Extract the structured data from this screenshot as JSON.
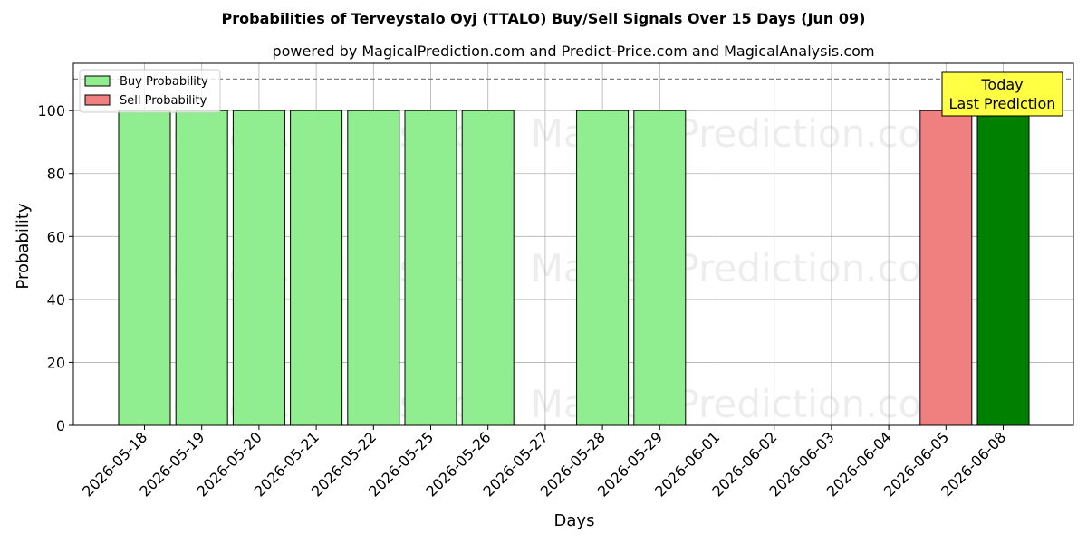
{
  "chart_data": {
    "type": "bar",
    "title": "Probabilities of Terveystalo Oyj (TTALO) Buy/Sell Signals Over 15 Days (Jun 09)",
    "subtitle": "powered by MagicalPrediction.com and Predict-Price.com and MagicalAnalysis.com",
    "xlabel": "Days",
    "ylabel": "Probability",
    "ylim": [
      0,
      115
    ],
    "yticks": [
      0,
      20,
      40,
      60,
      80,
      100
    ],
    "grid": true,
    "legend_position": "top-left",
    "reference_line": 110,
    "categories": [
      "2026-05-18",
      "2026-05-19",
      "2026-05-20",
      "2026-05-21",
      "2026-05-22",
      "2026-05-25",
      "2026-05-26",
      "2026-05-27",
      "2026-05-28",
      "2026-05-29",
      "2026-06-01",
      "2026-06-02",
      "2026-06-03",
      "2026-06-04",
      "2026-06-05",
      "2026-06-08"
    ],
    "series": [
      {
        "name": "Buy Probability",
        "color": "#90ee90",
        "values": [
          100,
          100,
          100,
          100,
          100,
          100,
          100,
          0,
          100,
          100,
          0,
          0,
          0,
          0,
          0,
          100
        ]
      },
      {
        "name": "Sell Probability",
        "color": "#f08080",
        "values": [
          0,
          0,
          0,
          0,
          0,
          0,
          0,
          0,
          0,
          0,
          0,
          0,
          0,
          0,
          100,
          0
        ]
      }
    ],
    "highlight": {
      "category": "2026-06-08",
      "color": "#008000"
    },
    "annotation": {
      "line1": "Today",
      "line2": "Last Prediction",
      "color": "#ffff44"
    },
    "watermarks": [
      "MagicalAnalysis.com",
      "MagicalPrediction.com"
    ]
  }
}
